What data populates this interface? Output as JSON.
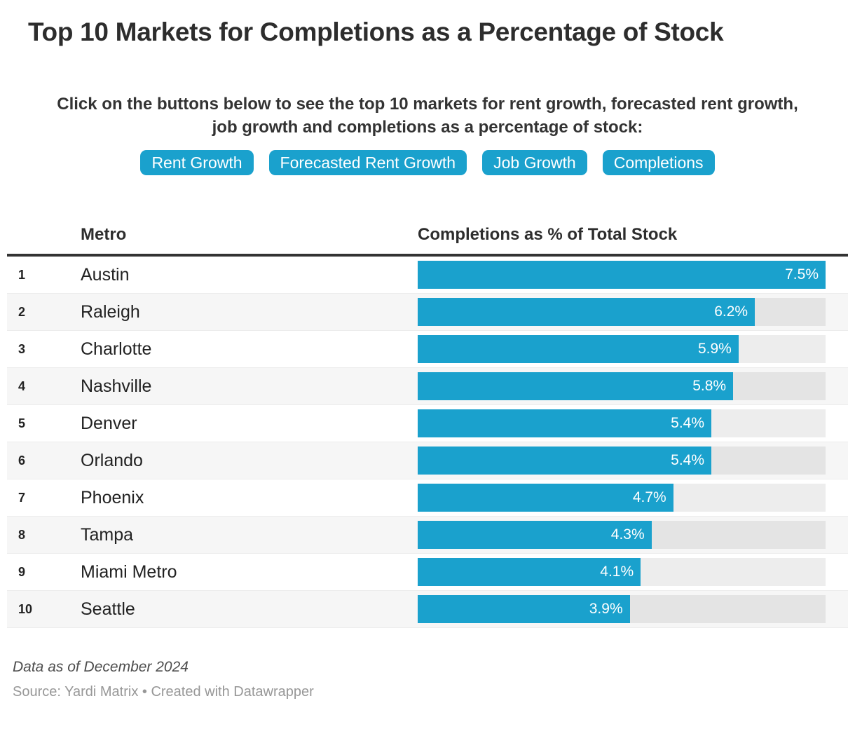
{
  "title": "Top 10 Markets for Completions as a Percentage of Stock",
  "description_lines": [
    "Click on the buttons below to see the top 10 markets for rent growth, forecasted rent growth,",
    "job growth and completions as a percentage of stock:"
  ],
  "buttons": [
    {
      "label": "Rent Growth"
    },
    {
      "label": "Forecasted Rent Growth"
    },
    {
      "label": "Job Growth"
    },
    {
      "label": "Completions"
    }
  ],
  "table": {
    "columns": [
      "Metro",
      "Completions as % of Total Stock"
    ],
    "max_value": 7.5,
    "rows": [
      {
        "rank": "1",
        "metro": "Austin",
        "value": 7.5,
        "label": "7.5%"
      },
      {
        "rank": "2",
        "metro": "Raleigh",
        "value": 6.2,
        "label": "6.2%"
      },
      {
        "rank": "3",
        "metro": "Charlotte",
        "value": 5.9,
        "label": "5.9%"
      },
      {
        "rank": "4",
        "metro": "Nashville",
        "value": 5.8,
        "label": "5.8%"
      },
      {
        "rank": "5",
        "metro": "Denver",
        "value": 5.4,
        "label": "5.4%"
      },
      {
        "rank": "6",
        "metro": "Orlando",
        "value": 5.4,
        "label": "5.4%"
      },
      {
        "rank": "7",
        "metro": "Phoenix",
        "value": 4.7,
        "label": "4.7%"
      },
      {
        "rank": "8",
        "metro": "Tampa",
        "value": 4.3,
        "label": "4.3%"
      },
      {
        "rank": "9",
        "metro": "Miami Metro",
        "value": 4.1,
        "label": "4.1%"
      },
      {
        "rank": "10",
        "metro": "Seattle",
        "value": 3.9,
        "label": "3.9%"
      }
    ]
  },
  "footer": {
    "note": "Data as of December 2024",
    "source": "Source: Yardi Matrix • Created with Datawrapper"
  },
  "colors": {
    "accent_blue": "#1aa1cd",
    "bar_track": "#e9e9e9",
    "row_stripe": "#f6f6f6",
    "header_rule": "#333333",
    "title_text": "#2d2d2d",
    "bar_label_text": "#ffffff",
    "source_text": "#979797"
  },
  "chart_data": {
    "type": "bar",
    "orientation": "horizontal",
    "title": "Top 10 Markets for Completions as a Percentage of Stock",
    "categories": [
      "Austin",
      "Raleigh",
      "Charlotte",
      "Nashville",
      "Denver",
      "Orlando",
      "Phoenix",
      "Tampa",
      "Miami Metro",
      "Seattle"
    ],
    "values": [
      7.5,
      6.2,
      5.9,
      5.8,
      5.4,
      5.4,
      4.7,
      4.3,
      4.1,
      3.9
    ],
    "value_unit": "%",
    "xlabel": "Completions as % of Total Stock",
    "ylabel": "Metro",
    "xlim": [
      0,
      7.5
    ],
    "grid": false,
    "legend": false,
    "data_labels": [
      "7.5%",
      "6.2%",
      "5.9%",
      "5.8%",
      "5.4%",
      "5.4%",
      "4.7%",
      "4.3%",
      "4.1%",
      "3.9%"
    ]
  }
}
